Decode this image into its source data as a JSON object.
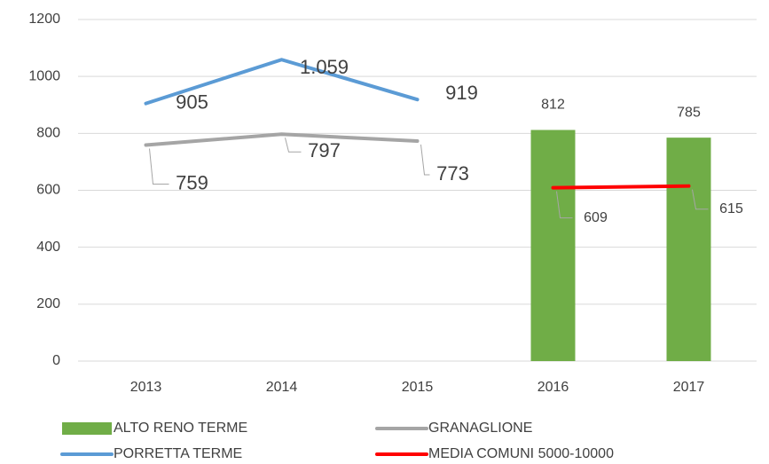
{
  "chart_data": {
    "type": "combo",
    "categories": [
      "2013",
      "2014",
      "2015",
      "2016",
      "2017"
    ],
    "ylim": [
      0,
      1200
    ],
    "yticks": [
      0,
      200,
      400,
      600,
      800,
      1000,
      1200
    ],
    "grid": true,
    "series": [
      {
        "name": "ALTO RENO TERME",
        "type": "bar",
        "color": "#70ad47",
        "values": [
          null,
          null,
          null,
          812,
          785
        ]
      },
      {
        "name": "GRANAGLIONE",
        "type": "line",
        "color": "#a5a5a5",
        "values": [
          759,
          797,
          773,
          null,
          null
        ]
      },
      {
        "name": "PORRETTA TERME",
        "type": "line",
        "color": "#5b9bd5",
        "values": [
          905,
          1059,
          919,
          null,
          null
        ],
        "value_labels": [
          "905",
          "1.059",
          "919",
          null,
          null
        ]
      },
      {
        "name": "MEDIA COMUNI 5000-10000",
        "type": "line",
        "color": "#ff0000",
        "values": [
          null,
          null,
          null,
          609,
          615
        ]
      }
    ]
  }
}
